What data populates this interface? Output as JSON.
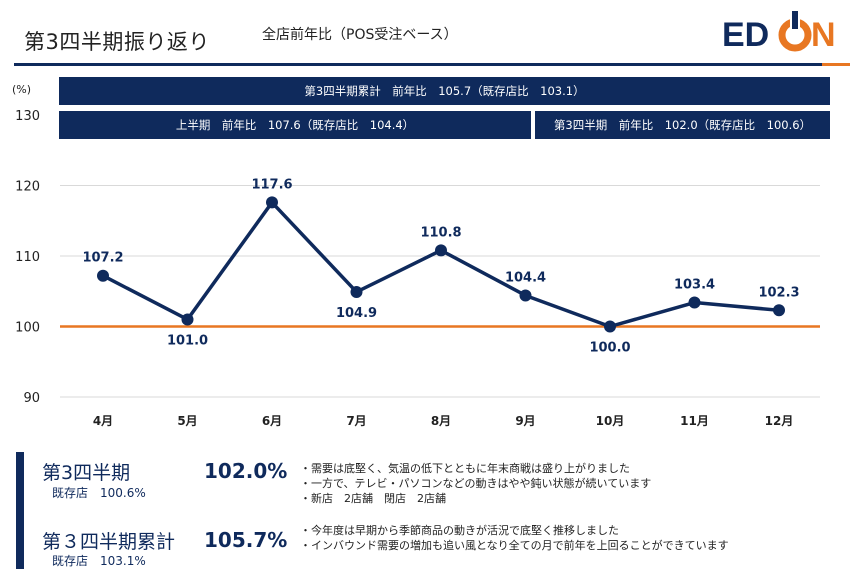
{
  "header": {
    "title": "第3四半期振り返り",
    "subtitle": "全店前年比（POS受注ベース）",
    "logo_text": "EDION"
  },
  "banners": {
    "q3_cumulative": "第3四半期累計　前年比　105.7（既存店比　103.1）",
    "first_half": "上半期　前年比　107.6（既存店比　104.4）",
    "q3": "第3四半期　前年比　102.0（既存店比　100.6）"
  },
  "chart_data": {
    "type": "line",
    "ylabel": "(%)",
    "ylim": [
      90,
      130
    ],
    "yticks": [
      90,
      100,
      110,
      120,
      130
    ],
    "categories": [
      "4月",
      "5月",
      "6月",
      "7月",
      "8月",
      "9月",
      "10月",
      "11月",
      "12月"
    ],
    "values": [
      107.2,
      101.0,
      117.6,
      104.9,
      110.8,
      104.4,
      100.0,
      103.4,
      102.3
    ],
    "labels": [
      "107.2",
      "101.0",
      "117.6",
      "104.9",
      "110.8",
      "104.4",
      "100.0",
      "103.4",
      "102.3"
    ],
    "label_positions": [
      "above",
      "below",
      "above",
      "below",
      "above",
      "above",
      "below",
      "above",
      "above"
    ],
    "reference_line": 100,
    "grid": true,
    "colors": {
      "line": "#0f2a5c",
      "reference": "#e87722",
      "grid": "#d9d9d9"
    }
  },
  "summary": {
    "q3": {
      "title": "第3四半期",
      "existing": "既存店　100.6%",
      "value": "102.0%",
      "bullets": [
        "・需要は底堅く、気温の低下とともに年末商戦は盛り上がりました",
        "・一方で、テレビ・パソコンなどの動きはやや鈍い状態が続いています",
        "・新店　2店舗　閉店　2店舗"
      ]
    },
    "q3_cumulative": {
      "title": "第３四半期累計",
      "existing": "既存店　103.1%",
      "value": "105.7%",
      "bullets": [
        "・今年度は早期から季節商品の動きが活況で底堅く推移しました",
        "・インバウンド需要の増加も追い風となり全ての月で前年を上回ることができています"
      ]
    }
  },
  "colors": {
    "navy": "#0f2a5c",
    "orange": "#e87722"
  }
}
